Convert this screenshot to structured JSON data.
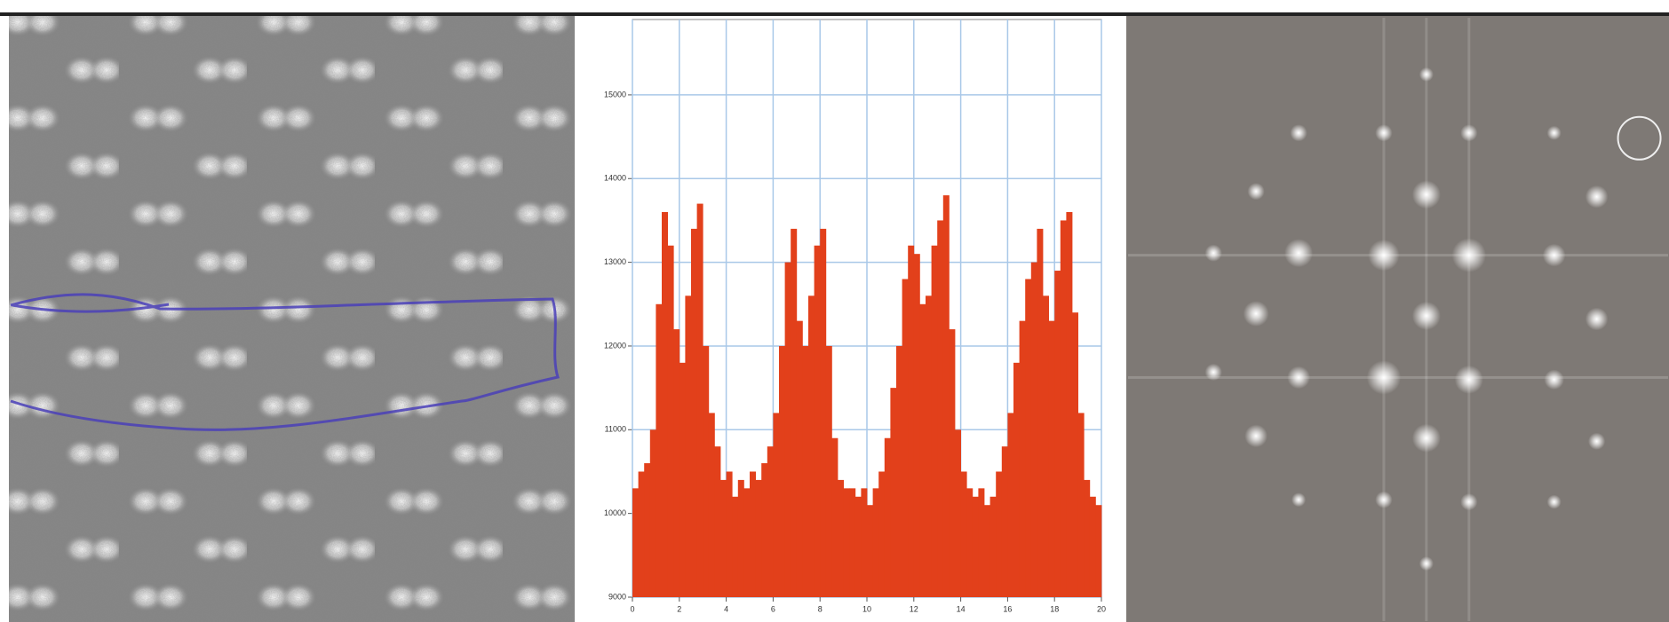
{
  "chart_data": {
    "type": "bar",
    "x": [
      0,
      0.25,
      0.5,
      0.75,
      1,
      1.25,
      1.5,
      1.75,
      2,
      2.25,
      2.5,
      2.75,
      3,
      3.25,
      3.5,
      3.75,
      4,
      4.25,
      4.5,
      4.75,
      5,
      5.25,
      5.5,
      5.75,
      6,
      6.25,
      6.5,
      6.75,
      7,
      7.25,
      7.5,
      7.75,
      8,
      8.25,
      8.5,
      8.75,
      9,
      9.25,
      9.5,
      9.75,
      10,
      10.25,
      10.5,
      10.75,
      11,
      11.25,
      11.5,
      11.75,
      12,
      12.25,
      12.5,
      12.75,
      13,
      13.25,
      13.5,
      13.75,
      14,
      14.25,
      14.5,
      14.75,
      15,
      15.25,
      15.5,
      15.75,
      16,
      16.25,
      16.5,
      16.75,
      17,
      17.25,
      17.5,
      17.75,
      18,
      18.25,
      18.5,
      18.75,
      19,
      19.25,
      19.5,
      19.75
    ],
    "values": [
      10300,
      10500,
      10600,
      11000,
      12500,
      13600,
      13200,
      12200,
      11800,
      12600,
      13400,
      13700,
      12000,
      11200,
      10800,
      10400,
      10500,
      10200,
      10400,
      10300,
      10500,
      10400,
      10600,
      10800,
      11200,
      12000,
      13000,
      13400,
      12300,
      12000,
      12600,
      13200,
      13400,
      12000,
      10900,
      10400,
      10300,
      10300,
      10200,
      10300,
      10100,
      10300,
      10500,
      10900,
      11500,
      12000,
      12800,
      13200,
      13100,
      12500,
      12600,
      13200,
      13500,
      13800,
      12200,
      11000,
      10500,
      10300,
      10200,
      10300,
      10100,
      10200,
      10500,
      10800,
      11200,
      11800,
      12300,
      12800,
      13000,
      13400,
      12600,
      12300,
      12900,
      13500,
      13600,
      12400,
      11200,
      10400,
      10200,
      10100
    ],
    "color": "#e2401b",
    "xlim": [
      0,
      20
    ],
    "xticks": [
      0,
      2,
      4,
      6,
      8,
      10,
      12,
      14,
      16,
      18,
      20
    ],
    "ylim": [
      9000,
      15900
    ],
    "yticks": [
      9000,
      10000,
      11000,
      12000,
      13000,
      14000,
      15000
    ],
    "grid": true,
    "grid_color": "#a9c8e8"
  }
}
